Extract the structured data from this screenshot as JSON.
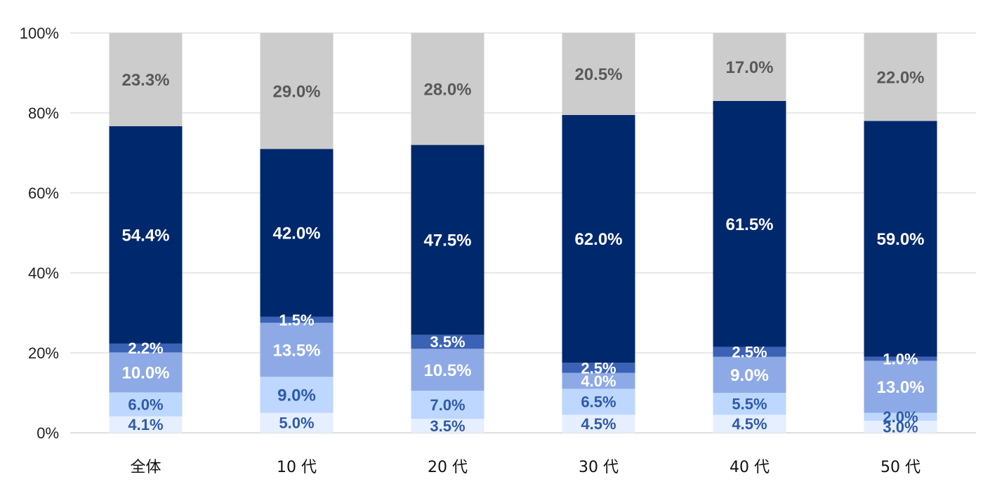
{
  "chart_data": {
    "type": "bar",
    "stacked": true,
    "categories": [
      "全体",
      "10 代",
      "20 代",
      "30 代",
      "40 代",
      "50 代"
    ],
    "series": [
      {
        "values": [
          4.1,
          5.0,
          3.5,
          4.5,
          4.5,
          3.0
        ],
        "color": "#e6efff",
        "label_color": "#2f5aa8"
      },
      {
        "values": [
          6.0,
          9.0,
          7.0,
          6.5,
          5.5,
          2.0
        ],
        "color": "#bdd7ff",
        "label_color": "#2f5aa8"
      },
      {
        "values": [
          10.0,
          13.5,
          10.5,
          4.0,
          9.0,
          13.0
        ],
        "color": "#8eaae6",
        "label_color": "#ffffff"
      },
      {
        "values": [
          2.2,
          1.5,
          3.5,
          2.5,
          2.5,
          1.0
        ],
        "color": "#3a62b5",
        "label_color": "#ffffff"
      },
      {
        "values": [
          54.4,
          42.0,
          47.5,
          62.0,
          61.5,
          59.0
        ],
        "color": "#00286c",
        "label_color": "#ffffff"
      },
      {
        "values": [
          23.3,
          29.0,
          28.0,
          20.5,
          17.0,
          22.0
        ],
        "color": "#cccccc",
        "label_color": "#595959"
      }
    ],
    "data_labels": [
      [
        "4.1%",
        "5.0%",
        "3.5%",
        "4.5%",
        "4.5%",
        "3.0%"
      ],
      [
        "6.0%",
        "9.0%",
        "7.0%",
        "6.5%",
        "5.5%",
        "2.0%"
      ],
      [
        "10.0%",
        "13.5%",
        "10.5%",
        "4.0%",
        "9.0%",
        "13.0%"
      ],
      [
        "2.2%",
        "1.5%",
        "3.5%",
        "2.5%",
        "2.5%",
        "1.0%"
      ],
      [
        "54.4%",
        "42.0%",
        "47.5%",
        "62.0%",
        "61.5%",
        "59.0%"
      ],
      [
        "23.3%",
        "29.0%",
        "28.0%",
        "20.5%",
        "17.0%",
        "22.0%"
      ]
    ],
    "ylim": [
      0,
      100
    ],
    "y_ticks": [
      0,
      20,
      40,
      60,
      80,
      100
    ],
    "y_tick_labels": [
      "0%",
      "20%",
      "40%",
      "60%",
      "80%",
      "100%"
    ],
    "grid": true,
    "gridline_color": "#d0d0d0",
    "axis_color": "#bfbfbf",
    "title": "",
    "xlabel": "",
    "ylabel": ""
  }
}
